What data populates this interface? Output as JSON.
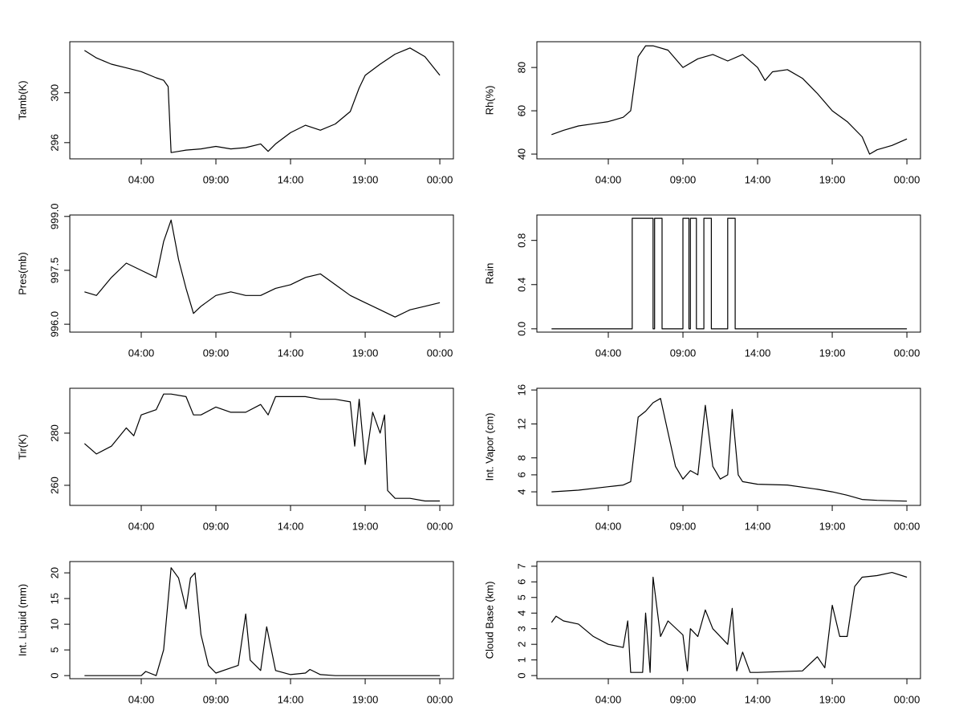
{
  "chart_data": [
    {
      "type": "line",
      "ylabel": "Tamb(K)",
      "xlim": [
        -0.785,
        24.91
      ],
      "ylim": [
        294.7,
        304.1
      ],
      "xticks": [
        {
          "value": 4,
          "label": "04:00"
        },
        {
          "value": 9,
          "label": "09:00"
        },
        {
          "value": 14,
          "label": "14:00"
        },
        {
          "value": 19,
          "label": "19:00"
        },
        {
          "value": 24,
          "label": "00:00"
        }
      ],
      "yticks": [
        296,
        300
      ],
      "x": [
        0.2,
        1,
        2,
        3,
        4,
        5,
        5.5,
        5.8,
        6,
        6.5,
        7,
        8,
        9,
        10,
        11,
        12,
        12.5,
        13,
        14,
        15,
        16,
        17,
        18,
        18.6,
        19,
        20,
        21,
        22,
        23,
        24
      ],
      "values": [
        303.4,
        302.8,
        302.3,
        302.0,
        301.7,
        301.2,
        301.0,
        300.5,
        295.2,
        295.3,
        295.4,
        295.5,
        295.7,
        295.5,
        295.6,
        295.9,
        295.3,
        295.9,
        296.8,
        297.4,
        297.0,
        297.5,
        298.5,
        300.4,
        301.4,
        302.3,
        303.1,
        303.6,
        302.9,
        301.4
      ]
    },
    {
      "type": "line",
      "ylabel": "Rh(%)",
      "xlim": [
        -0.785,
        24.91
      ],
      "ylim": [
        37.8,
        91.9
      ],
      "xticks": [
        {
          "value": 4,
          "label": "04:00"
        },
        {
          "value": 9,
          "label": "09:00"
        },
        {
          "value": 14,
          "label": "14:00"
        },
        {
          "value": 19,
          "label": "19:00"
        },
        {
          "value": 24,
          "label": "00:00"
        }
      ],
      "yticks": [
        40,
        60,
        80
      ],
      "x": [
        0.2,
        1,
        2,
        3,
        4,
        5,
        5.5,
        6,
        6.5,
        7,
        8,
        9,
        10,
        11,
        12,
        13,
        14,
        14.5,
        15,
        16,
        17,
        18,
        19,
        20,
        21,
        21.5,
        22,
        23,
        24
      ],
      "values": [
        49,
        51,
        53,
        54,
        55,
        57,
        60,
        85,
        90,
        90,
        88,
        80,
        84,
        86,
        83,
        86,
        80,
        74,
        78,
        79,
        75,
        68,
        60,
        55,
        48,
        40,
        42,
        44,
        47
      ]
    },
    {
      "type": "line",
      "ylabel": "Pres(mb)",
      "xlim": [
        -0.785,
        24.91
      ],
      "ylim": [
        995.78,
        999.04
      ],
      "xticks": [
        {
          "value": 4,
          "label": "04:00"
        },
        {
          "value": 9,
          "label": "09:00"
        },
        {
          "value": 14,
          "label": "14:00"
        },
        {
          "value": 19,
          "label": "19:00"
        },
        {
          "value": 24,
          "label": "00:00"
        }
      ],
      "yticks": [
        {
          "value": 996,
          "label": "996.0"
        },
        997.5,
        {
          "value": 999,
          "label": "999.0"
        }
      ],
      "x": [
        0.2,
        1,
        2,
        3,
        4,
        5,
        5.5,
        6,
        6.5,
        7,
        7.5,
        8,
        9,
        10,
        11,
        12,
        13,
        14,
        15,
        16,
        17,
        18,
        19,
        20,
        21,
        22,
        23,
        24
      ],
      "values": [
        996.9,
        996.8,
        997.3,
        997.7,
        997.5,
        997.3,
        998.3,
        998.9,
        997.8,
        997.0,
        996.3,
        996.5,
        996.8,
        996.9,
        996.8,
        996.8,
        997.0,
        997.1,
        997.3,
        997.4,
        997.1,
        996.8,
        996.6,
        996.4,
        996.2,
        996.4,
        996.5,
        996.6
      ]
    },
    {
      "type": "line",
      "ylabel": "Rain",
      "xlim": [
        -0.785,
        24.91
      ],
      "ylim": [
        -0.03,
        1.03
      ],
      "xticks": [
        {
          "value": 4,
          "label": "04:00"
        },
        {
          "value": 9,
          "label": "09:00"
        },
        {
          "value": 14,
          "label": "14:00"
        },
        {
          "value": 19,
          "label": "19:00"
        },
        {
          "value": 24,
          "label": "00:00"
        }
      ],
      "yticks": [
        {
          "value": 0,
          "label": "0.0"
        },
        0.4,
        0.8
      ],
      "x": [
        0.2,
        5.6,
        5.6,
        7.0,
        7.0,
        7.1,
        7.1,
        7.6,
        7.6,
        9.0,
        9.0,
        9.4,
        9.4,
        9.5,
        9.5,
        9.9,
        9.9,
        10.4,
        10.4,
        10.9,
        10.9,
        12.0,
        12.0,
        12.5,
        12.5,
        24
      ],
      "values": [
        0,
        0,
        1,
        1,
        0,
        0,
        1,
        1,
        0,
        0,
        1,
        1,
        0,
        0,
        1,
        1,
        0,
        0,
        1,
        1,
        0,
        0,
        1,
        1,
        0,
        0
      ]
    },
    {
      "type": "line",
      "ylabel": "Tir(K)",
      "xlim": [
        -0.785,
        24.91
      ],
      "ylim": [
        252.3,
        297.2
      ],
      "xticks": [
        {
          "value": 4,
          "label": "04:00"
        },
        {
          "value": 9,
          "label": "09:00"
        },
        {
          "value": 14,
          "label": "14:00"
        },
        {
          "value": 19,
          "label": "19:00"
        },
        {
          "value": 24,
          "label": "00:00"
        }
      ],
      "yticks": [
        260,
        280
      ],
      "x": [
        0.2,
        1,
        2,
        3,
        3.5,
        4,
        5,
        5.5,
        6,
        7,
        7.5,
        8,
        9,
        10,
        11,
        12,
        12.5,
        13,
        14,
        15,
        16,
        17,
        18,
        18.3,
        18.6,
        19,
        19.5,
        20,
        20.3,
        20.5,
        21,
        22,
        23,
        24
      ],
      "values": [
        276,
        272,
        275,
        282,
        279,
        287,
        289,
        295,
        295,
        294,
        287,
        287,
        290,
        288,
        288,
        291,
        287,
        294,
        294,
        294,
        293,
        293,
        292,
        275,
        293,
        268,
        288,
        280,
        287,
        258,
        255,
        255,
        254,
        254
      ]
    },
    {
      "type": "line",
      "ylabel": "Int. Vapor (cm)",
      "xlim": [
        -0.785,
        24.91
      ],
      "ylim": [
        2.4,
        16.2
      ],
      "xticks": [
        {
          "value": 4,
          "label": "04:00"
        },
        {
          "value": 9,
          "label": "09:00"
        },
        {
          "value": 14,
          "label": "14:00"
        },
        {
          "value": 19,
          "label": "19:00"
        },
        {
          "value": 24,
          "label": "00:00"
        }
      ],
      "yticks": [
        4,
        6,
        8,
        12,
        16
      ],
      "x": [
        0.2,
        2,
        4,
        5,
        5.5,
        6,
        6.5,
        7,
        7.5,
        8,
        8.5,
        9,
        9.5,
        10,
        10.5,
        11,
        11.5,
        12,
        12.3,
        12.7,
        13,
        14,
        16,
        18,
        19,
        20,
        21,
        22,
        24
      ],
      "values": [
        4.0,
        4.2,
        4.6,
        4.8,
        5.2,
        12.8,
        13.5,
        14.5,
        15.0,
        11,
        7,
        5.5,
        6.5,
        6.0,
        14.2,
        7,
        5.5,
        6,
        13.7,
        6,
        5.2,
        4.9,
        4.8,
        4.3,
        4.0,
        3.6,
        3.1,
        3.0,
        2.9
      ]
    },
    {
      "type": "line",
      "ylabel": "Int. Liquid (mm)",
      "xlim": [
        -0.785,
        24.91
      ],
      "ylim": [
        -0.6,
        22.2
      ],
      "xticks": [
        {
          "value": 4,
          "label": "04:00"
        },
        {
          "value": 9,
          "label": "09:00"
        },
        {
          "value": 14,
          "label": "14:00"
        },
        {
          "value": 19,
          "label": "19:00"
        },
        {
          "value": 24,
          "label": "00:00"
        }
      ],
      "yticks": [
        0,
        5,
        10,
        15,
        20
      ],
      "x": [
        0.2,
        4,
        4.3,
        5,
        5.5,
        6,
        6.5,
        7,
        7.3,
        7.6,
        8,
        8.5,
        9,
        10,
        10.5,
        11,
        11.3,
        12,
        12.4,
        13,
        14,
        15,
        15.3,
        16,
        17,
        24
      ],
      "values": [
        0,
        0,
        0.8,
        0,
        5,
        21,
        19,
        13,
        19,
        20,
        8,
        2,
        0.5,
        1.5,
        2.0,
        12,
        3,
        1.0,
        9.5,
        1.0,
        0.2,
        0.5,
        1.2,
        0.2,
        0,
        0
      ]
    },
    {
      "type": "line",
      "ylabel": "Cloud Base (km)",
      "xlim": [
        -0.785,
        24.91
      ],
      "ylim": [
        -0.2,
        7.3
      ],
      "xticks": [
        {
          "value": 4,
          "label": "04:00"
        },
        {
          "value": 9,
          "label": "09:00"
        },
        {
          "value": 14,
          "label": "14:00"
        },
        {
          "value": 19,
          "label": "19:00"
        },
        {
          "value": 24,
          "label": "00:00"
        }
      ],
      "yticks": [
        0,
        1,
        2,
        3,
        4,
        5,
        6,
        7
      ],
      "x": [
        0.2,
        0.5,
        1,
        2,
        3,
        4,
        5,
        5.3,
        5.5,
        6.3,
        6.5,
        6.8,
        7,
        7.5,
        8,
        9,
        9.3,
        9.5,
        10,
        10.5,
        11,
        12,
        12.3,
        12.6,
        13,
        13.5,
        14,
        17,
        18,
        18.5,
        19,
        19.5,
        20,
        20.5,
        21,
        22,
        23,
        24
      ],
      "values": [
        3.4,
        3.8,
        3.5,
        3.3,
        2.5,
        2.0,
        1.8,
        3.5,
        0.2,
        0.2,
        4.0,
        0.2,
        6.3,
        2.5,
        3.5,
        2.6,
        0.3,
        3,
        2.5,
        4.2,
        3,
        2.0,
        4.3,
        0.3,
        1.5,
        0.2,
        0.2,
        0.3,
        1.2,
        0.5,
        4.5,
        2.5,
        2.5,
        5.7,
        6.3,
        6.4,
        6.6,
        6.3
      ]
    }
  ]
}
